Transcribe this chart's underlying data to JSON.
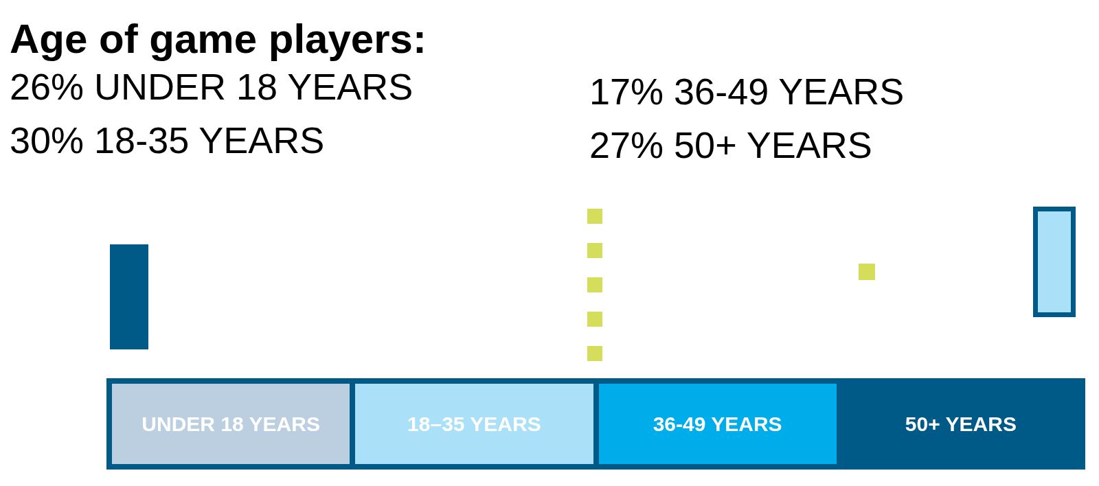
{
  "chart_data": {
    "type": "other",
    "title": "Age of game players:",
    "categories": [
      "UNDER 18 YEARS",
      "18–35 YEARS",
      "36-49 YEARS",
      "50+ YEARS"
    ],
    "values": [
      26,
      30,
      17,
      27
    ],
    "value_labels": [
      "26% UNDER 18 YEARS",
      "30% 18-35 YEARS",
      "17% 36-49 YEARS",
      "27% 50+ YEARS"
    ],
    "colors": [
      "#bccfe0",
      "#abe0f9",
      "#00adeb",
      "#005a87"
    ]
  }
}
